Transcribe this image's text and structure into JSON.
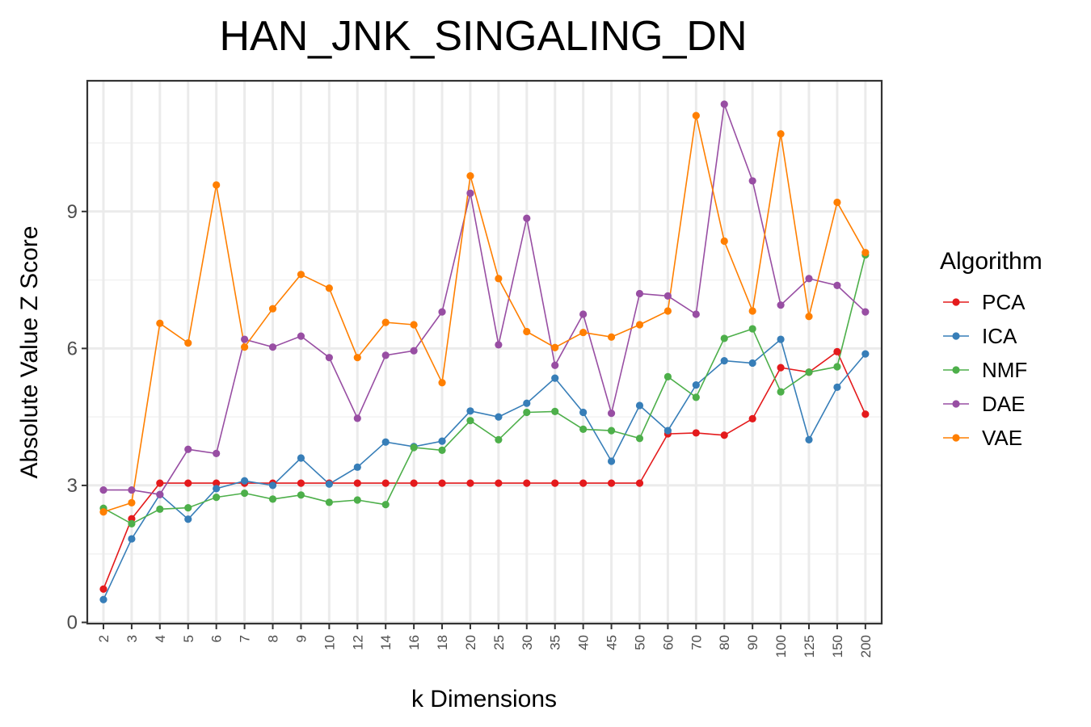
{
  "chart_data": {
    "type": "line",
    "title": "HAN_JNK_SINGALING_DN",
    "xlabel": "k Dimensions",
    "ylabel": "Absolute Value Z Score",
    "categories": [
      "2",
      "3",
      "4",
      "5",
      "6",
      "7",
      "8",
      "9",
      "10",
      "12",
      "14",
      "16",
      "18",
      "20",
      "25",
      "30",
      "35",
      "40",
      "45",
      "50",
      "60",
      "70",
      "80",
      "90",
      "100",
      "125",
      "150",
      "200"
    ],
    "y_ticks": [
      "0",
      "3",
      "6",
      "9"
    ],
    "ylim": [
      0,
      11.7
    ],
    "grid": true,
    "legend_title": "Algorithm",
    "legend_position": "right",
    "series": [
      {
        "name": "PCA",
        "color": "#e41a1c",
        "values": [
          0.73,
          2.27,
          3.05,
          3.05,
          3.05,
          3.05,
          3.05,
          3.05,
          3.05,
          3.05,
          3.05,
          3.05,
          3.05,
          3.05,
          3.05,
          3.05,
          3.05,
          3.05,
          3.05,
          3.05,
          4.13,
          4.15,
          4.1,
          4.46,
          5.58,
          5.48,
          5.93,
          4.56
        ]
      },
      {
        "name": "ICA",
        "color": "#377eb8",
        "values": [
          0.5,
          1.83,
          2.8,
          2.26,
          2.93,
          3.1,
          3.0,
          3.6,
          3.03,
          3.4,
          3.95,
          3.85,
          3.97,
          4.63,
          4.5,
          4.8,
          5.35,
          4.6,
          3.53,
          4.75,
          4.2,
          5.2,
          5.73,
          5.68,
          6.2,
          4.0,
          5.15,
          5.88
        ]
      },
      {
        "name": "NMF",
        "color": "#4daf4a",
        "values": [
          2.5,
          2.16,
          2.48,
          2.51,
          2.74,
          2.83,
          2.7,
          2.79,
          2.63,
          2.68,
          2.58,
          3.83,
          3.77,
          4.42,
          4.0,
          4.6,
          4.62,
          4.23,
          4.2,
          4.03,
          5.38,
          4.93,
          6.22,
          6.43,
          5.05,
          5.48,
          5.6,
          8.05
        ]
      },
      {
        "name": "DAE",
        "color": "#984ea3",
        "values": [
          2.9,
          2.9,
          2.8,
          3.79,
          3.7,
          6.2,
          6.03,
          6.27,
          5.8,
          4.47,
          5.85,
          5.95,
          6.8,
          9.4,
          6.08,
          8.85,
          5.63,
          6.75,
          4.58,
          7.2,
          7.15,
          6.75,
          11.35,
          9.67,
          6.95,
          7.53,
          7.38,
          6.8
        ]
      },
      {
        "name": "VAE",
        "color": "#ff7f00",
        "values": [
          2.42,
          2.62,
          6.55,
          6.12,
          9.58,
          6.03,
          6.87,
          7.62,
          7.32,
          5.8,
          6.57,
          6.52,
          5.25,
          9.78,
          7.53,
          6.37,
          6.02,
          6.35,
          6.25,
          6.52,
          6.82,
          11.1,
          8.35,
          6.82,
          10.7,
          6.7,
          9.2,
          8.1
        ]
      }
    ]
  }
}
